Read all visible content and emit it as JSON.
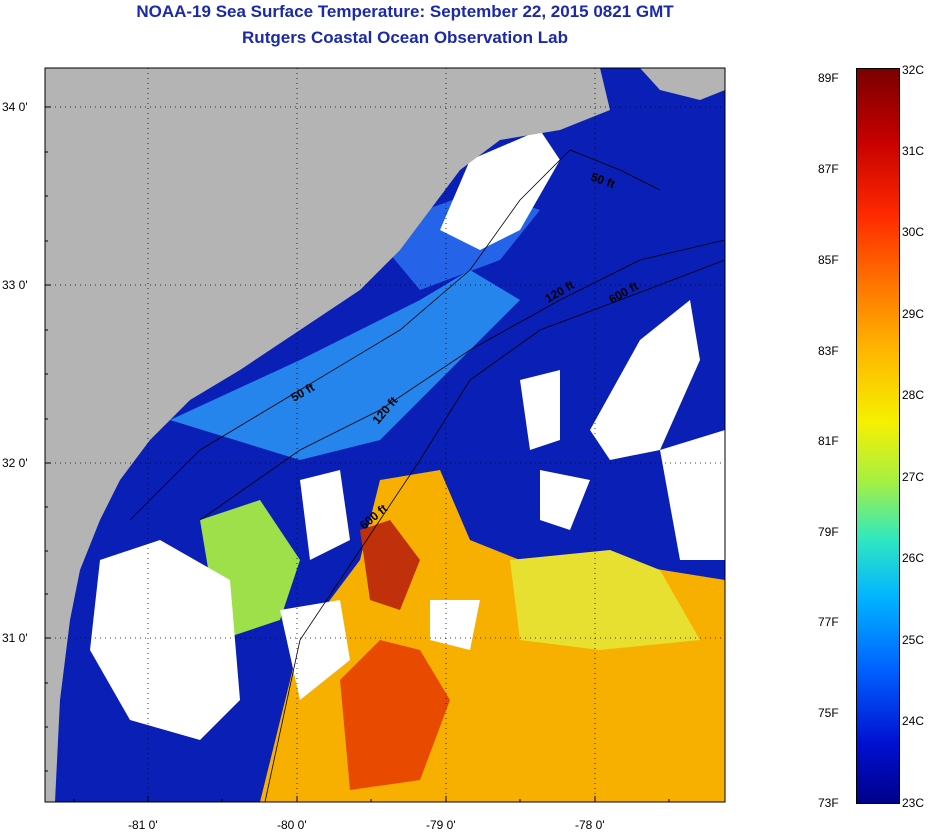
{
  "title": "NOAA-19 Sea Surface Temperature:  September 22, 2015 0821 GMT",
  "subtitle": "Rutgers Coastal Ocean Observation Lab",
  "map": {
    "lat_labels": [
      "34 0'",
      "33 0'",
      "32 0'",
      "31 0'"
    ],
    "lon_labels": [
      "-81 0'",
      "-80 0'",
      "-79 0'",
      "-78 0'"
    ],
    "contours": [
      "50 ft",
      "120 ft",
      "600 ft",
      "50 ft",
      "120 ft",
      "600 ft"
    ],
    "colors": {
      "land": "#b4b4b4",
      "cloud": "#ffffff",
      "cold_water": "#0a1fb5"
    }
  },
  "colorbar": {
    "fahrenheit": [
      "89F",
      "87F",
      "85F",
      "83F",
      "81F",
      "79F",
      "77F",
      "75F",
      "73F"
    ],
    "celsius": [
      "32C",
      "31C",
      "30C",
      "29C",
      "28C",
      "27C",
      "26C",
      "25C",
      "24C",
      "23C"
    ]
  }
}
